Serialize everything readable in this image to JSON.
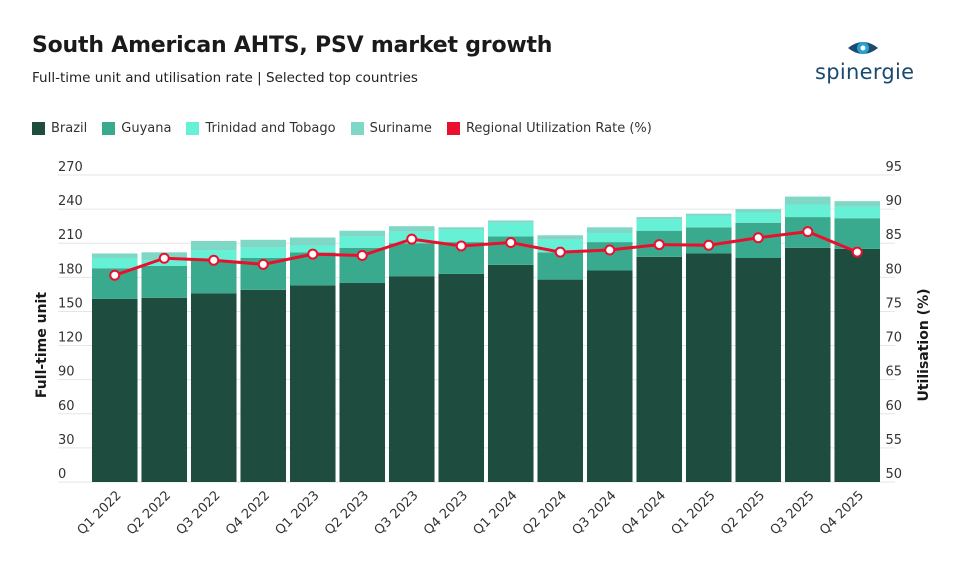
{
  "header": {
    "title": "South American AHTS, PSV market growth",
    "subtitle": "Full-time unit and utilisation rate | Selected top countries"
  },
  "brand": {
    "name": "spinergie",
    "logo_color": "#1a4a6e",
    "accent": "#2a9fd6"
  },
  "chart_data": {
    "type": "bar",
    "stacked": true,
    "categories": [
      "Q1 2022",
      "Q2 2022",
      "Q3 2022",
      "Q4 2022",
      "Q1 2023",
      "Q2 2023",
      "Q3 2023",
      "Q4 2023",
      "Q1 2024",
      "Q2 2024",
      "Q3 2024",
      "Q4 2024",
      "Q1 2025",
      "Q2 2025",
      "Q3 2025",
      "Q4 2025"
    ],
    "series": [
      {
        "name": "Brazil",
        "color": "#1e4d40",
        "values": [
          161,
          162,
          166,
          169,
          173,
          175,
          181,
          183,
          191,
          178,
          186,
          198,
          201,
          197,
          206,
          205
        ]
      },
      {
        "name": "Guyana",
        "color": "#3aaa8e",
        "values": [
          27,
          28,
          29,
          28,
          29,
          31,
          29,
          28,
          25,
          24,
          25,
          23,
          23,
          31,
          27,
          27
        ]
      },
      {
        "name": "Trinidad and Tobago",
        "color": "#66f0d6",
        "values": [
          9,
          5,
          9,
          9,
          6,
          10,
          10,
          11,
          12,
          11,
          8,
          10,
          10,
          9,
          11,
          10
        ]
      },
      {
        "name": "Suriname",
        "color": "#7fd8c6",
        "values": [
          4,
          7,
          8,
          7,
          7,
          5,
          5,
          2,
          2,
          4,
          5,
          2,
          2,
          3,
          7,
          5
        ]
      }
    ],
    "line": {
      "name": "Regional Utilization Rate (%)",
      "color": "#e8102e",
      "axis": "right",
      "values": [
        80.3,
        82.8,
        82.5,
        81.9,
        83.4,
        83.2,
        85.6,
        84.6,
        85.1,
        83.7,
        84.0,
        84.8,
        84.7,
        85.8,
        86.7,
        83.7
      ]
    },
    "left_axis": {
      "label": "Full-time unit",
      "ylim": [
        0,
        270
      ],
      "ticks": [
        0,
        30,
        60,
        90,
        120,
        150,
        180,
        210,
        240,
        270
      ]
    },
    "right_axis": {
      "label": "Utilisation (%)",
      "ylim": [
        50,
        95
      ],
      "ticks": [
        50,
        55,
        60,
        65,
        70,
        75,
        80,
        85,
        90,
        95
      ]
    },
    "grid": true,
    "legend_position": "top-left"
  }
}
